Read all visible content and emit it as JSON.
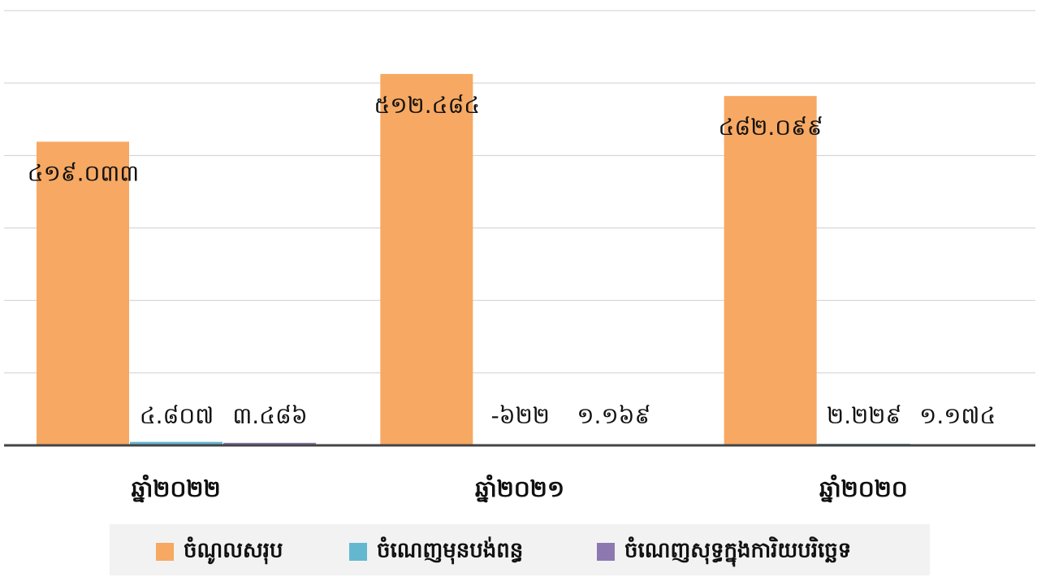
{
  "chart_data": {
    "type": "bar",
    "categories": [
      "ឆ្នាំ២០២២",
      "ឆ្នាំ២០២១",
      "ឆ្នាំ២០២០"
    ],
    "series": [
      {
        "name": "ចំណូលសរុប",
        "color": "#f7a862",
        "values": [
          419033,
          512484,
          482099
        ],
        "value_labels": [
          "៤១៩.០៣៣",
          "៥១២.៤៨៤",
          "៤៨២.០៩៩"
        ]
      },
      {
        "name": "ចំណេញមុនបង់ពន្ធ",
        "color": "#63b8d0",
        "values": [
          4807,
          -622,
          2229
        ],
        "value_labels": [
          "៤.៨០៧",
          "-៦២២",
          "២.២២៩"
        ]
      },
      {
        "name": "ចំណេញសុទ្ធក្នុងការិយបរិច្ឆេទ",
        "color": "#8e78b0",
        "values": [
          3486,
          1169,
          1174
        ],
        "value_labels": [
          "៣.៤៨៦",
          "១.១៦៩",
          "១.១៧៤"
        ]
      }
    ],
    "ylim": [
      0,
      600000
    ],
    "yticks": [
      0,
      100000,
      200000,
      300000,
      400000,
      500000,
      600000
    ],
    "grid": true
  }
}
